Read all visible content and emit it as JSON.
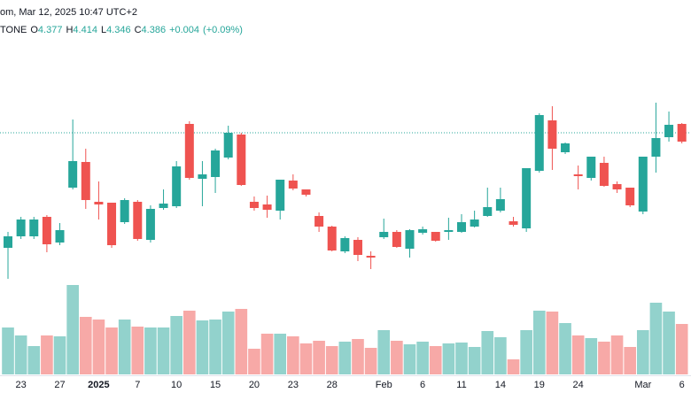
{
  "chart_data": {
    "type": "candlestick",
    "title": "om, Mar 12, 2025 10:47 UTC+2",
    "symbol": "TONE",
    "ohlc_legend": [
      {
        "name": "O",
        "value": 4.377
      },
      {
        "name": "H",
        "value": 4.414
      },
      {
        "name": "L",
        "value": 4.346
      },
      {
        "name": "C",
        "value": 4.386
      }
    ],
    "change": {
      "value": 0.004,
      "label": "+0.004"
    },
    "change_pct": {
      "value": 0.09,
      "label": "(+0.09%)"
    },
    "categories": [
      null,
      "23",
      null,
      null,
      "27",
      null,
      null,
      "2025",
      null,
      null,
      "7",
      null,
      null,
      "10",
      null,
      null,
      "15",
      null,
      null,
      "20",
      null,
      null,
      "23",
      null,
      null,
      "28",
      null,
      null,
      null,
      "Feb",
      null,
      null,
      "6",
      null,
      null,
      "11",
      null,
      null,
      "14",
      null,
      null,
      "19",
      null,
      null,
      "24",
      null,
      null,
      null,
      null,
      "Mar",
      null,
      null,
      "6"
    ],
    "open": [
      3.736,
      3.801,
      3.801,
      3.911,
      3.766,
      4.076,
      4.221,
      3.996,
      3.991,
      3.881,
      3.996,
      3.781,
      3.961,
      3.971,
      4.436,
      4.126,
      4.136,
      4.246,
      4.376,
      3.996,
      3.981,
      3.946,
      4.116,
      4.066,
      3.916,
      3.856,
      3.716,
      3.781,
      3.691,
      3.796,
      3.826,
      3.731,
      3.821,
      3.826,
      3.826,
      3.826,
      3.856,
      3.916,
      3.946,
      3.886,
      3.846,
      4.171,
      4.456,
      4.276,
      4.151,
      4.131,
      4.216,
      4.096,
      4.076,
      3.941,
      4.251,
      4.361,
      4.436
    ],
    "high": [
      3.826,
      3.911,
      3.911,
      3.921,
      3.876,
      4.461,
      4.296,
      4.111,
      3.991,
      4.016,
      4.006,
      3.976,
      4.066,
      4.226,
      4.451,
      4.226,
      4.296,
      4.426,
      4.386,
      4.026,
      4.031,
      4.121,
      4.151,
      4.066,
      3.936,
      3.861,
      3.801,
      3.796,
      3.716,
      3.901,
      3.836,
      3.841,
      3.856,
      3.826,
      3.906,
      3.926,
      3.946,
      4.076,
      4.076,
      3.911,
      4.186,
      4.496,
      4.536,
      4.331,
      4.201,
      4.251,
      4.251,
      4.111,
      4.076,
      4.251,
      4.556,
      4.506,
      4.441
    ],
    "low": [
      3.561,
      3.786,
      3.786,
      3.711,
      3.751,
      4.066,
      3.956,
      3.896,
      3.736,
      3.871,
      3.776,
      3.766,
      3.951,
      3.961,
      4.121,
      3.971,
      4.046,
      4.236,
      4.086,
      3.946,
      3.906,
      3.896,
      4.061,
      4.026,
      3.826,
      3.716,
      3.706,
      3.661,
      3.616,
      3.786,
      3.736,
      3.681,
      3.811,
      3.771,
      3.781,
      3.821,
      3.851,
      3.911,
      3.936,
      3.856,
      3.826,
      4.161,
      4.176,
      4.266,
      4.066,
      4.116,
      4.081,
      4.046,
      3.966,
      3.926,
      4.161,
      4.336,
      4.326
    ],
    "close": [
      3.801,
      3.896,
      3.896,
      3.756,
      3.836,
      4.226,
      4.006,
      3.981,
      3.751,
      4.006,
      3.786,
      3.956,
      3.986,
      4.196,
      4.131,
      4.151,
      4.286,
      4.386,
      4.091,
      3.961,
      3.951,
      4.121,
      4.071,
      4.036,
      3.856,
      3.721,
      3.791,
      3.696,
      3.681,
      3.826,
      3.741,
      3.836,
      3.841,
      3.776,
      3.836,
      3.881,
      3.896,
      3.966,
      4.011,
      3.866,
      4.186,
      4.486,
      4.296,
      4.326,
      4.141,
      4.251,
      4.086,
      4.066,
      3.976,
      4.251,
      4.356,
      4.431,
      4.336
    ],
    "volume": [
      53,
      44,
      32,
      44,
      43,
      101,
      65,
      62,
      53,
      62,
      54,
      53,
      53,
      66,
      72,
      61,
      62,
      71,
      74,
      29,
      46,
      46,
      43,
      35,
      38,
      32,
      37,
      40,
      30,
      50,
      38,
      34,
      37,
      32,
      35,
      36,
      31,
      49,
      42,
      17,
      50,
      72,
      71,
      58,
      44,
      41,
      37,
      44,
      31,
      50,
      81,
      71,
      57
    ],
    "up_color": "#26a69a",
    "down_color": "#ef5350",
    "ylim": [
      3.536,
      4.936
    ],
    "volume_ylim": [
      0,
      120
    ]
  }
}
